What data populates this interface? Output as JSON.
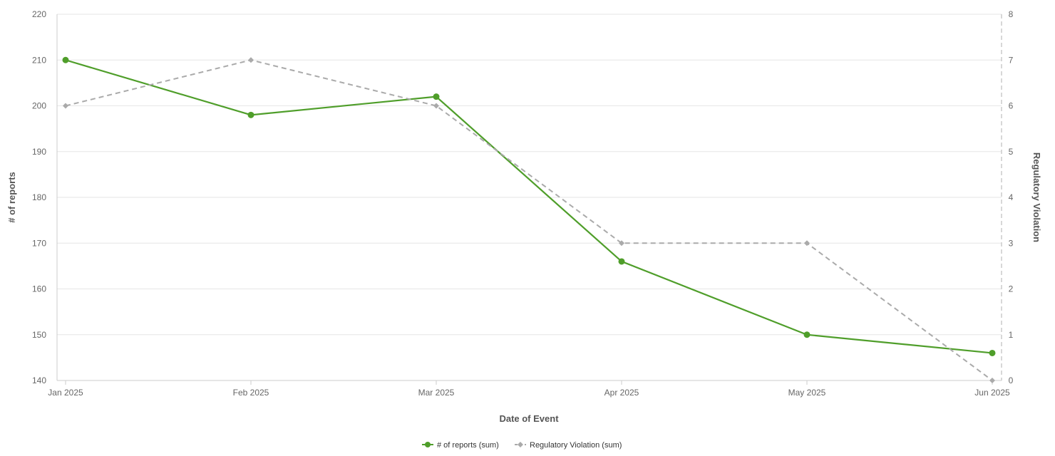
{
  "chart_data": {
    "type": "line",
    "categories": [
      "Jan 2025",
      "Feb 2025",
      "Mar 2025",
      "Apr 2025",
      "May 2025",
      "Jun 2025"
    ],
    "xlabel": "Date of Event",
    "ylabel_left": "# of reports",
    "ylabel_right": "Regulatory Violation",
    "ylim_left": [
      140,
      220
    ],
    "yticks_left": [
      140,
      150,
      160,
      170,
      180,
      190,
      200,
      210,
      220
    ],
    "ylim_right": [
      0,
      8
    ],
    "yticks_right": [
      0,
      1,
      2,
      3,
      4,
      5,
      6,
      7,
      8
    ],
    "grid": true,
    "legend_position": "bottom-center",
    "series": [
      {
        "name": "# of reports (sum)",
        "axis": "left",
        "values": [
          210,
          198,
          202,
          166,
          150,
          146
        ],
        "color": "#4f9e2a",
        "line_style": "solid",
        "marker": "circle"
      },
      {
        "name": "Regulatory Violation (sum)",
        "axis": "right",
        "values": [
          6,
          7,
          6,
          3,
          3,
          0
        ],
        "color": "#aaaaaa",
        "line_style": "dashed",
        "marker": "diamond"
      }
    ]
  }
}
